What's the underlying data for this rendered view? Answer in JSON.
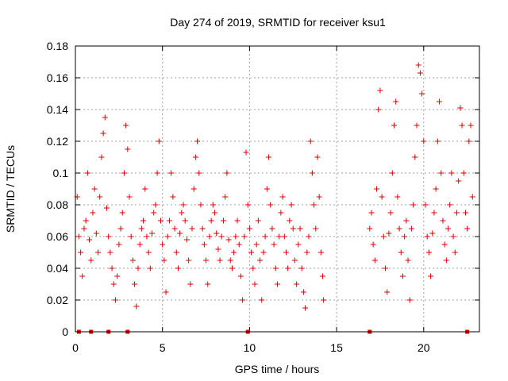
{
  "chart_data": {
    "type": "scatter",
    "title": "Day 274 of 2019, SRMTID for receiver ksu1",
    "xlabel": "GPS time / hours",
    "ylabel": "SRMTID / TECUs",
    "xlim": [
      0,
      23.2
    ],
    "ylim": [
      0,
      0.18
    ],
    "xticks": [
      0,
      5,
      10,
      15,
      20
    ],
    "xtick_labels": [
      "0",
      "5",
      "10",
      "15",
      "20"
    ],
    "yticks": [
      0,
      0.02,
      0.04,
      0.06,
      0.08,
      0.1,
      0.12,
      0.14,
      0.16,
      0.18
    ],
    "ytick_labels": [
      "0",
      "0.02",
      "0.04",
      "0.06",
      "0.08",
      "0.1",
      "0.12",
      "0.14",
      "0.16",
      "0.18"
    ],
    "grid": true,
    "marker": "+",
    "color": "#e00000",
    "data_gap_hours": [
      14.3,
      16.8
    ],
    "series": [
      {
        "name": "SRMTID",
        "points": [
          [
            0.1,
            0.085
          ],
          [
            0.2,
            0.06
          ],
          [
            0.3,
            0.05
          ],
          [
            0.4,
            0.035
          ],
          [
            0.5,
            0.065
          ],
          [
            0.6,
            0.07
          ],
          [
            0.7,
            0.1
          ],
          [
            0.8,
            0.058
          ],
          [
            0.9,
            0.045
          ],
          [
            1.0,
            0.075
          ],
          [
            1.1,
            0.09
          ],
          [
            1.2,
            0.062
          ],
          [
            1.3,
            0.05
          ],
          [
            1.4,
            0.085
          ],
          [
            1.5,
            0.11
          ],
          [
            1.6,
            0.125
          ],
          [
            1.7,
            0.135
          ],
          [
            1.8,
            0.078
          ],
          [
            1.9,
            0.06
          ],
          [
            2.0,
            0.05
          ],
          [
            2.1,
            0.04
          ],
          [
            2.2,
            0.03
          ],
          [
            2.3,
            0.02
          ],
          [
            2.4,
            0.035
          ],
          [
            2.5,
            0.055
          ],
          [
            2.6,
            0.065
          ],
          [
            2.7,
            0.075
          ],
          [
            2.8,
            0.1
          ],
          [
            2.9,
            0.13
          ],
          [
            3.0,
            0.115
          ],
          [
            3.1,
            0.085
          ],
          [
            3.2,
            0.06
          ],
          [
            3.3,
            0.045
          ],
          [
            3.4,
            0.03
          ],
          [
            3.5,
            0.016
          ],
          [
            3.6,
            0.04
          ],
          [
            3.7,
            0.055
          ],
          [
            3.8,
            0.065
          ],
          [
            3.9,
            0.07
          ],
          [
            4.0,
            0.09
          ],
          [
            4.1,
            0.06
          ],
          [
            4.2,
            0.05
          ],
          [
            4.3,
            0.04
          ],
          [
            4.4,
            0.062
          ],
          [
            4.5,
            0.075
          ],
          [
            4.6,
            0.08
          ],
          [
            4.7,
            0.1
          ],
          [
            4.8,
            0.12
          ],
          [
            4.9,
            0.07
          ],
          [
            5.0,
            0.055
          ],
          [
            5.1,
            0.045
          ],
          [
            5.2,
            0.025
          ],
          [
            5.3,
            0.06
          ],
          [
            5.4,
            0.07
          ],
          [
            5.5,
            0.1
          ],
          [
            5.6,
            0.085
          ],
          [
            5.7,
            0.065
          ],
          [
            5.8,
            0.05
          ],
          [
            5.9,
            0.04
          ],
          [
            6.0,
            0.062
          ],
          [
            6.1,
            0.075
          ],
          [
            6.2,
            0.08
          ],
          [
            6.3,
            0.07
          ],
          [
            6.4,
            0.058
          ],
          [
            6.5,
            0.045
          ],
          [
            6.6,
            0.03
          ],
          [
            6.7,
            0.065
          ],
          [
            6.8,
            0.09
          ],
          [
            6.9,
            0.11
          ],
          [
            7.0,
            0.12
          ],
          [
            7.1,
            0.1
          ],
          [
            7.2,
            0.08
          ],
          [
            7.3,
            0.065
          ],
          [
            7.4,
            0.055
          ],
          [
            7.5,
            0.045
          ],
          [
            7.6,
            0.03
          ],
          [
            7.7,
            0.06
          ],
          [
            7.8,
            0.07
          ],
          [
            7.9,
            0.08
          ],
          [
            8.0,
            0.075
          ],
          [
            8.1,
            0.062
          ],
          [
            8.2,
            0.052
          ],
          [
            8.3,
            0.045
          ],
          [
            8.4,
            0.06
          ],
          [
            8.5,
            0.07
          ],
          [
            8.6,
            0.085
          ],
          [
            8.7,
            0.1
          ],
          [
            8.8,
            0.058
          ],
          [
            8.9,
            0.045
          ],
          [
            9.0,
            0.04
          ],
          [
            9.1,
            0.05
          ],
          [
            9.2,
            0.06
          ],
          [
            9.3,
            0.07
          ],
          [
            9.4,
            0.055
          ],
          [
            9.5,
            0.035
          ],
          [
            9.6,
            0.02
          ],
          [
            9.7,
            0.06
          ],
          [
            9.8,
            0.113
          ],
          [
            9.9,
            0.08
          ],
          [
            10.0,
            0.065
          ],
          [
            10.1,
            0.05
          ],
          [
            10.2,
            0.04
          ],
          [
            10.3,
            0.03
          ],
          [
            10.4,
            0.055
          ],
          [
            10.5,
            0.07
          ],
          [
            10.6,
            0.045
          ],
          [
            10.7,
            0.02
          ],
          [
            10.8,
            0.05
          ],
          [
            10.9,
            0.06
          ],
          [
            11.0,
            0.09
          ],
          [
            11.1,
            0.11
          ],
          [
            11.2,
            0.08
          ],
          [
            11.3,
            0.065
          ],
          [
            11.4,
            0.055
          ],
          [
            11.5,
            0.04
          ],
          [
            11.6,
            0.03
          ],
          [
            11.7,
            0.06
          ],
          [
            11.8,
            0.075
          ],
          [
            11.9,
            0.085
          ],
          [
            12.0,
            0.06
          ],
          [
            12.1,
            0.05
          ],
          [
            12.2,
            0.04
          ],
          [
            12.3,
            0.07
          ],
          [
            12.4,
            0.08
          ],
          [
            12.5,
            0.065
          ],
          [
            12.6,
            0.045
          ],
          [
            12.7,
            0.03
          ],
          [
            12.8,
            0.055
          ],
          [
            12.9,
            0.065
          ],
          [
            13.0,
            0.04
          ],
          [
            13.1,
            0.025
          ],
          [
            13.2,
            0.015
          ],
          [
            13.3,
            0.05
          ],
          [
            13.4,
            0.06
          ],
          [
            13.5,
            0.12
          ],
          [
            13.6,
            0.1
          ],
          [
            13.7,
            0.08
          ],
          [
            13.8,
            0.065
          ],
          [
            13.9,
            0.11
          ],
          [
            14.0,
            0.085
          ],
          [
            14.1,
            0.05
          ],
          [
            14.2,
            0.035
          ],
          [
            14.25,
            0.02
          ],
          [
            16.9,
            0.065
          ],
          [
            17.0,
            0.075
          ],
          [
            17.1,
            0.055
          ],
          [
            17.2,
            0.045
          ],
          [
            17.3,
            0.09
          ],
          [
            17.4,
            0.14
          ],
          [
            17.5,
            0.152
          ],
          [
            17.6,
            0.085
          ],
          [
            17.7,
            0.06
          ],
          [
            17.8,
            0.04
          ],
          [
            17.9,
            0.025
          ],
          [
            18.0,
            0.062
          ],
          [
            18.1,
            0.075
          ],
          [
            18.2,
            0.1
          ],
          [
            18.3,
            0.13
          ],
          [
            18.4,
            0.145
          ],
          [
            18.5,
            0.085
          ],
          [
            18.6,
            0.065
          ],
          [
            18.7,
            0.05
          ],
          [
            18.8,
            0.035
          ],
          [
            18.9,
            0.06
          ],
          [
            19.0,
            0.07
          ],
          [
            19.1,
            0.045
          ],
          [
            19.2,
            0.02
          ],
          [
            19.3,
            0.065
          ],
          [
            19.4,
            0.08
          ],
          [
            19.5,
            0.11
          ],
          [
            19.6,
            0.13
          ],
          [
            19.7,
            0.168
          ],
          [
            19.8,
            0.163
          ],
          [
            19.9,
            0.15
          ],
          [
            20.0,
            0.12
          ],
          [
            20.1,
            0.08
          ],
          [
            20.2,
            0.06
          ],
          [
            20.3,
            0.05
          ],
          [
            20.4,
            0.035
          ],
          [
            20.5,
            0.062
          ],
          [
            20.6,
            0.075
          ],
          [
            20.7,
            0.09
          ],
          [
            20.8,
            0.12
          ],
          [
            20.9,
            0.145
          ],
          [
            21.0,
            0.1
          ],
          [
            21.1,
            0.07
          ],
          [
            21.2,
            0.055
          ],
          [
            21.3,
            0.045
          ],
          [
            21.4,
            0.065
          ],
          [
            21.5,
            0.08
          ],
          [
            21.6,
            0.1
          ],
          [
            21.7,
            0.06
          ],
          [
            21.8,
            0.05
          ],
          [
            21.9,
            0.075
          ],
          [
            22.0,
            0.095
          ],
          [
            22.1,
            0.141
          ],
          [
            22.2,
            0.13
          ],
          [
            22.3,
            0.1
          ],
          [
            22.4,
            0.075
          ],
          [
            22.5,
            0.065
          ],
          [
            22.6,
            0.12
          ],
          [
            22.7,
            0.13
          ],
          [
            22.8,
            0.085
          ]
        ]
      }
    ],
    "zero_markers": [
      0.2,
      0.9,
      1.9,
      3.0,
      9.9,
      16.9,
      22.5
    ]
  }
}
